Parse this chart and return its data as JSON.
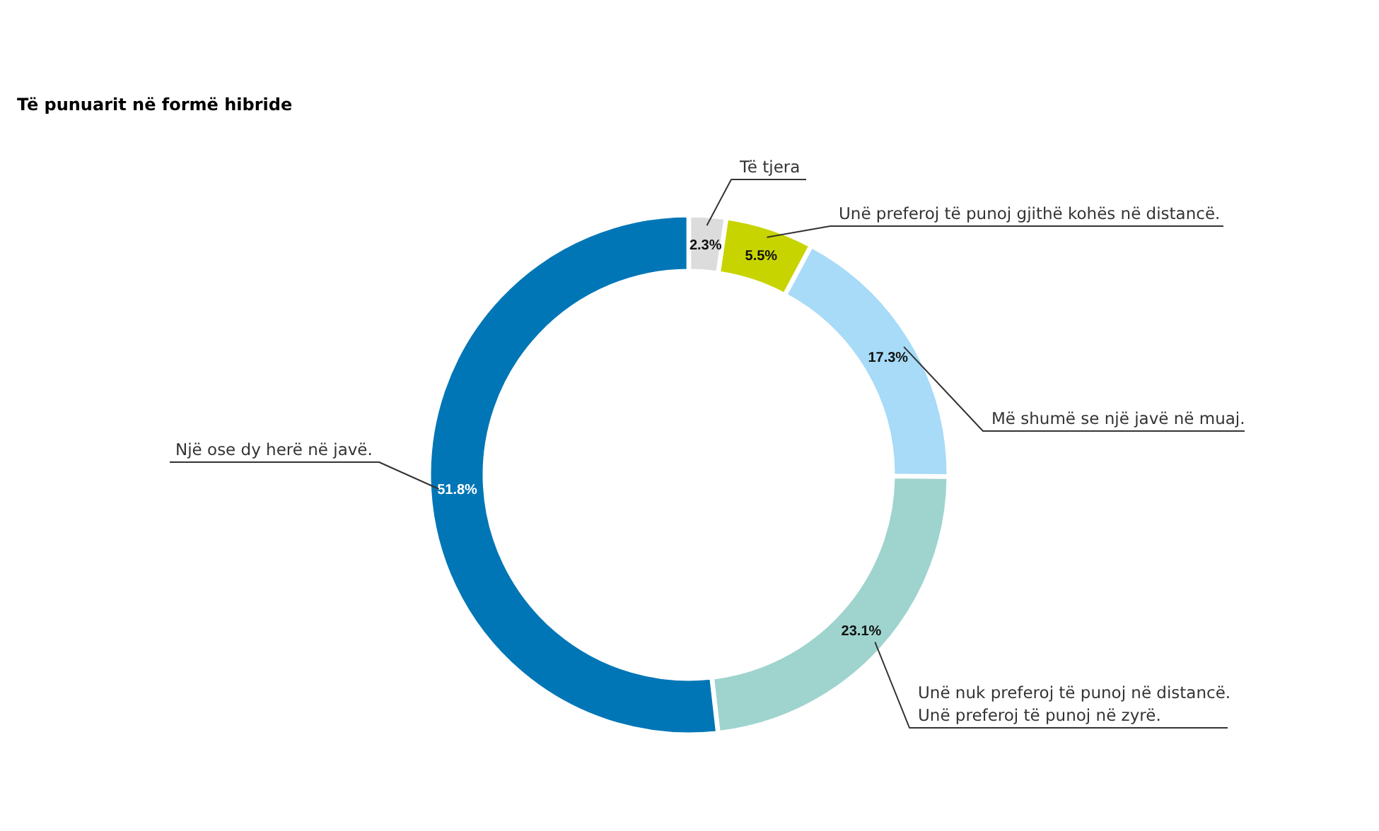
{
  "chart_data": {
    "type": "donut",
    "title": "Të punuarit në formë hibride",
    "categories": [
      "Të tjera",
      "Unë preferoj të punoj gjithë kohës në distancë.",
      "Më shumë se një javë në muaj.",
      "Unë nuk preferoj të punoj në distancë.\nUnë preferoj të punoj në zyrë.",
      "Një ose dy herë në javë."
    ],
    "values": [
      2.3,
      5.5,
      17.3,
      23.1,
      51.8
    ],
    "value_labels": [
      "2.3%",
      "5.5%",
      "17.3%",
      "23.1%",
      "51.8%"
    ],
    "colors": [
      "#dcdcdc",
      "#c8d400",
      "#a7dbf7",
      "#9fd4ce",
      "#0076b6"
    ],
    "legend": false
  }
}
